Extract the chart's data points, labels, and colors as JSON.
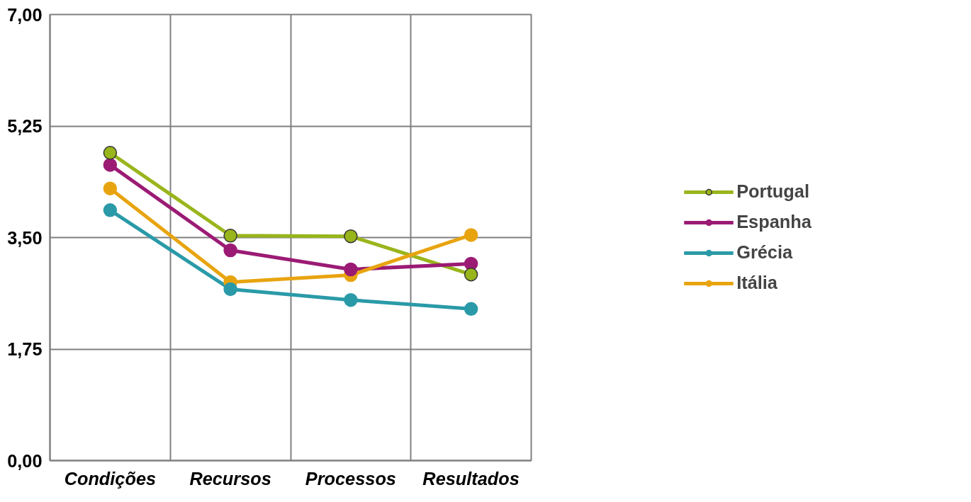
{
  "chart_data": {
    "type": "line",
    "categories": [
      "Condições",
      "Recursos",
      "Processos",
      "Resultados"
    ],
    "series": [
      {
        "name": "Portugal",
        "color": "#99b51c",
        "values": [
          4.83,
          3.53,
          3.52,
          2.92
        ]
      },
      {
        "name": "Espanha",
        "color": "#9b1b74",
        "values": [
          4.64,
          3.3,
          3.0,
          3.09
        ]
      },
      {
        "name": "Grécia",
        "color": "#2a9aa8",
        "values": [
          3.93,
          2.69,
          2.52,
          2.38
        ]
      },
      {
        "name": "Itália",
        "color": "#e8a40f",
        "values": [
          4.27,
          2.8,
          2.91,
          3.54
        ]
      }
    ],
    "ylim": [
      0,
      7
    ],
    "yticks": [
      {
        "value": 0,
        "label": "0,00"
      },
      {
        "value": 1.75,
        "label": "1,75"
      },
      {
        "value": 3.5,
        "label": "3,50"
      },
      {
        "value": 5.25,
        "label": "5,25"
      },
      {
        "value": 7,
        "label": "7,00"
      }
    ],
    "grid": true,
    "legend": "right",
    "marker": "circle"
  }
}
